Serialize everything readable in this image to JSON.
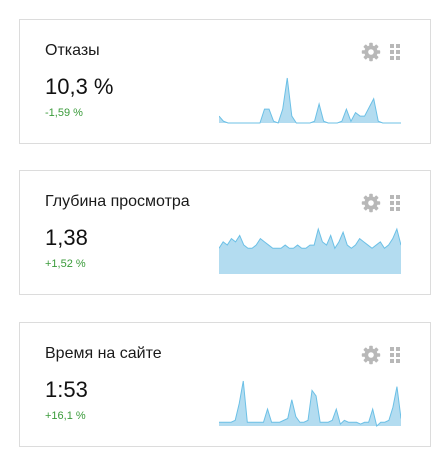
{
  "widgets": [
    {
      "title": "Отказы",
      "value": "10,3 %",
      "delta": "-1,59 %",
      "series": [
        4,
        1,
        0,
        0,
        0,
        0,
        0,
        0,
        0,
        0,
        8,
        8,
        1,
        0,
        8,
        26,
        4,
        0,
        0,
        0,
        0,
        1,
        11,
        1,
        0,
        0,
        0,
        1,
        8,
        1,
        6,
        4,
        4,
        9,
        14,
        1,
        0,
        0,
        0,
        0,
        0
      ]
    },
    {
      "title": "Глубина просмотра",
      "value": "1,38",
      "delta": "+1,52 %",
      "series": [
        8,
        10,
        9,
        11,
        10,
        12,
        9,
        8,
        8,
        9,
        11,
        10,
        9,
        8,
        8,
        8,
        9,
        8,
        8,
        9,
        8,
        8,
        9,
        9,
        14,
        10,
        9,
        12,
        8,
        10,
        13,
        9,
        8,
        9,
        11,
        10,
        9,
        8,
        9,
        10,
        8,
        9,
        11,
        14,
        9
      ]
    },
    {
      "title": "Время на сайте",
      "value": "1:53",
      "delta": "+16,1 %",
      "series": [
        2,
        2,
        2,
        2,
        3,
        12,
        24,
        2,
        2,
        2,
        2,
        2,
        9,
        2,
        2,
        2,
        3,
        4,
        14,
        5,
        2,
        2,
        3,
        19,
        16,
        2,
        2,
        2,
        3,
        9,
        1,
        3,
        2,
        2,
        2,
        1,
        2,
        2,
        9,
        0,
        2,
        2,
        3,
        10,
        21,
        4
      ]
    }
  ],
  "icons": {
    "settings": "gear-icon",
    "drag": "drag-handle-icon"
  },
  "colors": {
    "spark_fill": "#b3dcf0",
    "spark_stroke": "#6cc0e6",
    "delta": "#3a9b3a",
    "icon": "#b8b8b8",
    "border": "#dcdcdc"
  }
}
